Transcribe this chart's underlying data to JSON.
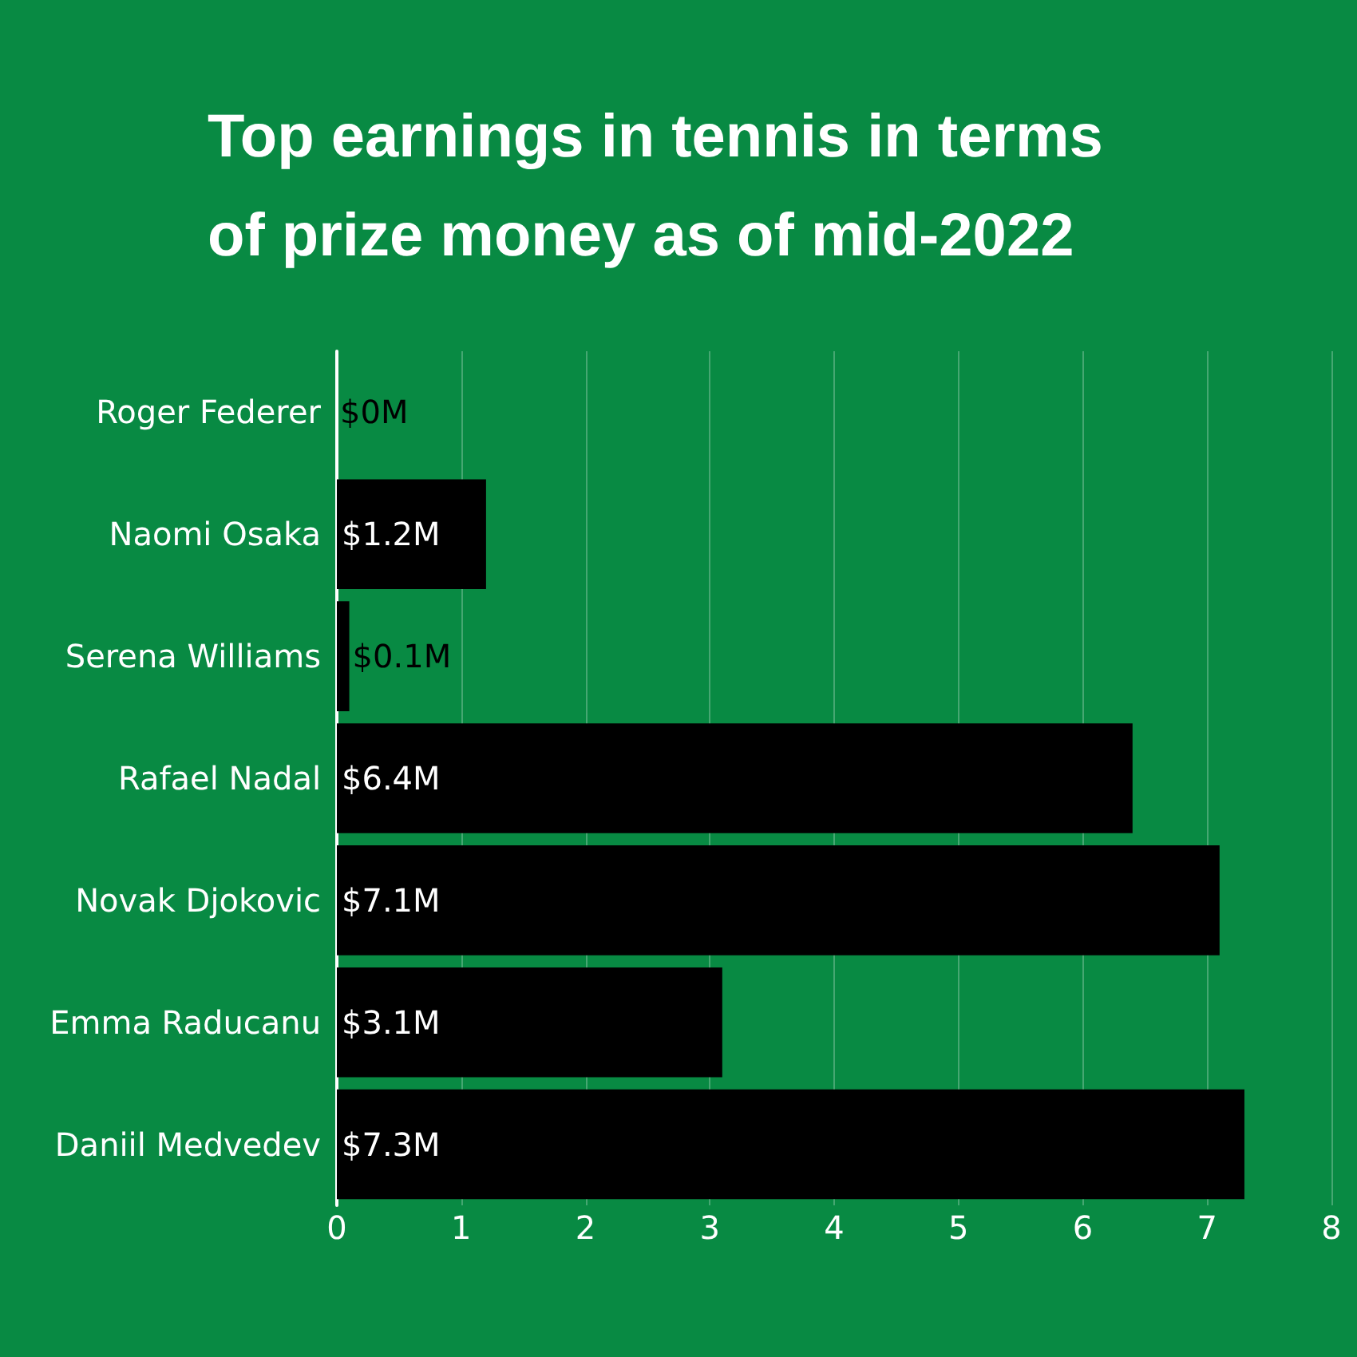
{
  "chart_data": {
    "type": "bar",
    "orientation": "horizontal",
    "title": "Top earnings in tennis in terms\nof prize money as of mid-2022",
    "categories": [
      "Roger Federer",
      "Naomi Osaka",
      "Serena Williams",
      "Rafael Nadal",
      "Novak Djokovic",
      "Emma Raducanu",
      "Daniil Medvedev"
    ],
    "values": [
      0,
      1.2,
      0.1,
      6.4,
      7.1,
      3.1,
      7.3
    ],
    "value_labels": [
      "$0M",
      "$1.2M",
      "$0.1M",
      "$6.4M",
      "$7.1M",
      "$3.1M",
      "$7.3M"
    ],
    "color": "#000000",
    "xlim": [
      0,
      8
    ],
    "xticks": [
      0,
      1,
      2,
      3,
      4,
      5,
      6,
      7,
      8
    ],
    "grid": "x"
  }
}
